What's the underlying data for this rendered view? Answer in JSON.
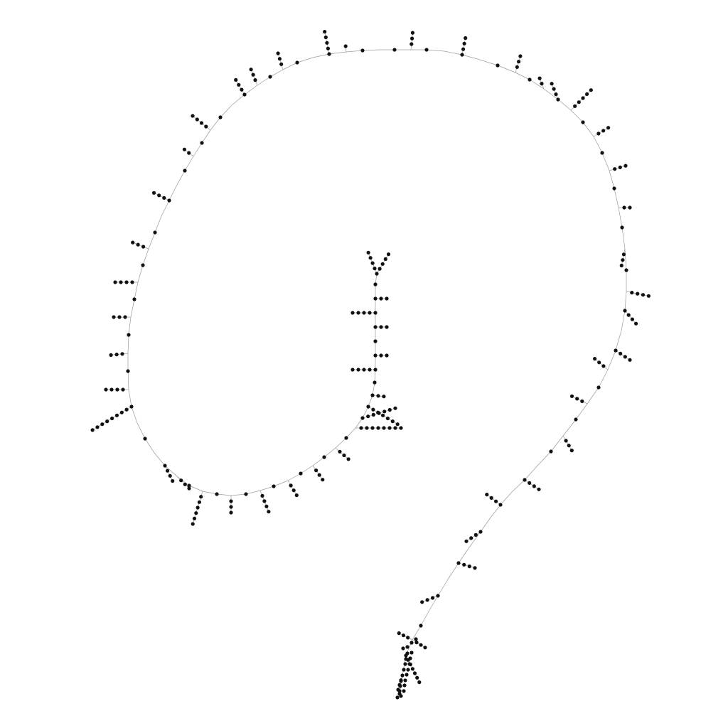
{
  "diagram": {
    "type": "graph-network",
    "layout": "spiral-backbone-with-side-branches",
    "node_color": "#111111",
    "edge_color": "#9a9a9a",
    "background_color": "#ffffff"
  }
}
